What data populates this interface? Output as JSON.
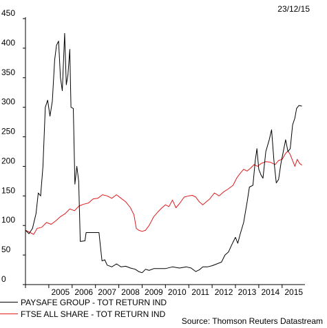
{
  "date": "23/12/15",
  "source": "Source: Thomson Reuters Datastream",
  "chart_data": {
    "type": "line",
    "title": "",
    "xlabel": "",
    "ylabel": "",
    "ylim": [
      0,
      450
    ],
    "xlim": [
      2004.0,
      2015.98
    ],
    "yticks": [
      0,
      50,
      100,
      150,
      200,
      250,
      300,
      350,
      400,
      450
    ],
    "xticks": [
      "2005",
      "2006",
      "2007",
      "2008",
      "2009",
      "2010",
      "2011",
      "2012",
      "2013",
      "2014",
      "2015"
    ],
    "grid": false,
    "legend_position": "bottom-left",
    "series": [
      {
        "name": "PAYSAFE GROUP - TOT RETURN IND",
        "color": "#000000",
        "points": [
          [
            2004.0,
            92
          ],
          [
            2004.15,
            86
          ],
          [
            2004.3,
            95
          ],
          [
            2004.45,
            120
          ],
          [
            2004.55,
            155
          ],
          [
            2004.65,
            150
          ],
          [
            2004.75,
            200
          ],
          [
            2004.85,
            300
          ],
          [
            2004.95,
            312
          ],
          [
            2005.05,
            285
          ],
          [
            2005.15,
            310
          ],
          [
            2005.25,
            380
          ],
          [
            2005.33,
            405
          ],
          [
            2005.42,
            412
          ],
          [
            2005.5,
            350
          ],
          [
            2005.58,
            328
          ],
          [
            2005.68,
            425
          ],
          [
            2005.75,
            338
          ],
          [
            2005.82,
            355
          ],
          [
            2005.9,
            398
          ],
          [
            2005.95,
            300
          ],
          [
            2006.05,
            298
          ],
          [
            2006.12,
            170
          ],
          [
            2006.2,
            200
          ],
          [
            2006.28,
            175
          ],
          [
            2006.35,
            73
          ],
          [
            2006.55,
            74
          ],
          [
            2006.6,
            88
          ],
          [
            2007.15,
            88
          ],
          [
            2007.2,
            70
          ],
          [
            2007.28,
            40
          ],
          [
            2007.4,
            42
          ],
          [
            2007.5,
            33
          ],
          [
            2007.7,
            30
          ],
          [
            2007.9,
            35
          ],
          [
            2008.1,
            30
          ],
          [
            2008.3,
            31
          ],
          [
            2008.5,
            28
          ],
          [
            2008.7,
            26
          ],
          [
            2008.85,
            22
          ],
          [
            2009.0,
            20
          ],
          [
            2009.15,
            26
          ],
          [
            2009.3,
            24
          ],
          [
            2009.5,
            27
          ],
          [
            2009.7,
            27
          ],
          [
            2010.0,
            27
          ],
          [
            2010.3,
            30
          ],
          [
            2010.6,
            28
          ],
          [
            2010.9,
            30
          ],
          [
            2011.1,
            28
          ],
          [
            2011.3,
            22
          ],
          [
            2011.45,
            25
          ],
          [
            2011.6,
            30
          ],
          [
            2011.8,
            30
          ],
          [
            2012.0,
            32
          ],
          [
            2012.2,
            35
          ],
          [
            2012.4,
            38
          ],
          [
            2012.55,
            50
          ],
          [
            2012.7,
            55
          ],
          [
            2012.85,
            68
          ],
          [
            2013.0,
            80
          ],
          [
            2013.1,
            70
          ],
          [
            2013.2,
            85
          ],
          [
            2013.35,
            105
          ],
          [
            2013.5,
            140
          ],
          [
            2013.6,
            165
          ],
          [
            2013.75,
            168
          ],
          [
            2013.85,
            210
          ],
          [
            2013.92,
            230
          ],
          [
            2014.0,
            195
          ],
          [
            2014.1,
            185
          ],
          [
            2014.18,
            180
          ],
          [
            2014.3,
            225
          ],
          [
            2014.45,
            245
          ],
          [
            2014.55,
            262
          ],
          [
            2014.65,
            210
          ],
          [
            2014.75,
            172
          ],
          [
            2014.85,
            178
          ],
          [
            2014.95,
            205
          ],
          [
            2015.05,
            225
          ],
          [
            2015.15,
            245
          ],
          [
            2015.25,
            225
          ],
          [
            2015.35,
            230
          ],
          [
            2015.45,
            270
          ],
          [
            2015.55,
            282
          ],
          [
            2015.62,
            298
          ],
          [
            2015.72,
            303
          ],
          [
            2015.85,
            302
          ]
        ]
      },
      {
        "name": "FTSE ALL SHARE - TOT RETURN IND",
        "color": "#e0191b",
        "points": [
          [
            2004.0,
            92
          ],
          [
            2004.2,
            88
          ],
          [
            2004.35,
            85
          ],
          [
            2004.5,
            95
          ],
          [
            2004.7,
            97
          ],
          [
            2004.9,
            105
          ],
          [
            2005.1,
            102
          ],
          [
            2005.3,
            108
          ],
          [
            2005.5,
            115
          ],
          [
            2005.7,
            120
          ],
          [
            2005.9,
            128
          ],
          [
            2006.1,
            125
          ],
          [
            2006.3,
            133
          ],
          [
            2006.5,
            136
          ],
          [
            2006.7,
            138
          ],
          [
            2006.9,
            145
          ],
          [
            2007.1,
            146
          ],
          [
            2007.3,
            152
          ],
          [
            2007.5,
            150
          ],
          [
            2007.7,
            146
          ],
          [
            2007.9,
            152
          ],
          [
            2008.1,
            146
          ],
          [
            2008.3,
            140
          ],
          [
            2008.5,
            130
          ],
          [
            2008.65,
            118
          ],
          [
            2008.75,
            95
          ],
          [
            2008.85,
            92
          ],
          [
            2009.0,
            90
          ],
          [
            2009.15,
            92
          ],
          [
            2009.3,
            100
          ],
          [
            2009.5,
            115
          ],
          [
            2009.7,
            124
          ],
          [
            2009.85,
            130
          ],
          [
            2010.0,
            135
          ],
          [
            2010.15,
            132
          ],
          [
            2010.3,
            143
          ],
          [
            2010.45,
            130
          ],
          [
            2010.6,
            137
          ],
          [
            2010.8,
            148
          ],
          [
            2011.0,
            150
          ],
          [
            2011.15,
            151
          ],
          [
            2011.3,
            148
          ],
          [
            2011.45,
            140
          ],
          [
            2011.6,
            135
          ],
          [
            2011.75,
            140
          ],
          [
            2011.9,
            145
          ],
          [
            2012.1,
            155
          ],
          [
            2012.3,
            150
          ],
          [
            2012.5,
            157
          ],
          [
            2012.7,
            162
          ],
          [
            2012.9,
            168
          ],
          [
            2013.05,
            180
          ],
          [
            2013.2,
            188
          ],
          [
            2013.35,
            195
          ],
          [
            2013.5,
            192
          ],
          [
            2013.65,
            197
          ],
          [
            2013.8,
            203
          ],
          [
            2013.95,
            200
          ],
          [
            2014.1,
            205
          ],
          [
            2014.3,
            208
          ],
          [
            2014.5,
            207
          ],
          [
            2014.7,
            203
          ],
          [
            2014.85,
            210
          ],
          [
            2015.0,
            212
          ],
          [
            2015.15,
            222
          ],
          [
            2015.25,
            226
          ],
          [
            2015.35,
            220
          ],
          [
            2015.45,
            210
          ],
          [
            2015.55,
            200
          ],
          [
            2015.65,
            212
          ],
          [
            2015.75,
            205
          ],
          [
            2015.85,
            202
          ]
        ]
      }
    ]
  }
}
